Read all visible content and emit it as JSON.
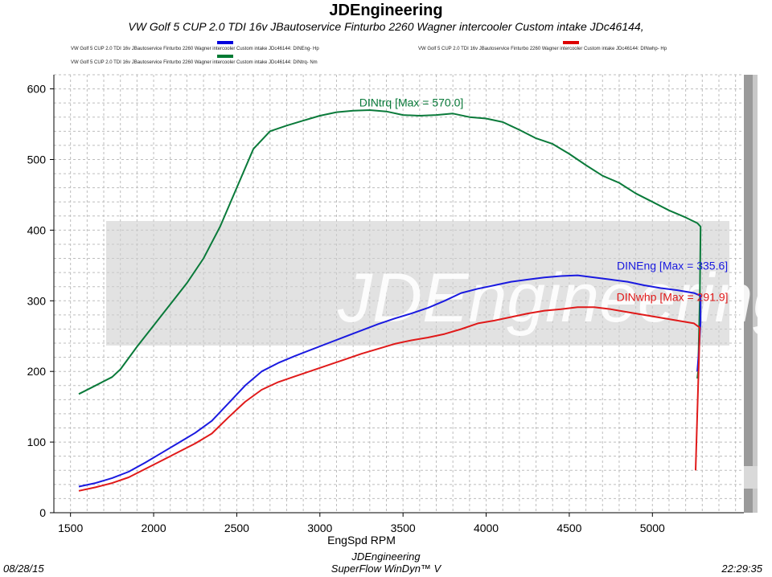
{
  "chart_data": {
    "type": "line",
    "title": "JDEngineering",
    "subtitle": "VW Golf 5  CUP   2.0 TDI 16v   JBautoservice Finturbo 2260  Wagner intercooler Custom intake    JDc46144,",
    "xlabel": "EngSpd  RPM",
    "ylabel": "",
    "xlim": [
      1400,
      5550
    ],
    "ylim": [
      0,
      620
    ],
    "xticks": [
      1500,
      2000,
      2500,
      3000,
      3500,
      4000,
      4500,
      5000
    ],
    "yticks": [
      0,
      100,
      200,
      300,
      400,
      500,
      600
    ],
    "legend": [
      {
        "text": "VW Golf 5  CUP   2.0 TDI 16v   JBautoservice Finturbo 2260  Wagner intercooler Custom intake    JDc46144: DINEng- Hp",
        "color": "#0000dd"
      },
      {
        "text": "VW Golf 5  CUP   2.0 TDI 16v   JBautoservice Finturbo 2260  Wagner intercooler Custom intake    JDc46144: DINwhp- Hp",
        "color": "#dd0000"
      },
      {
        "text": "VW Golf 5  CUP   2.0 TDI 16v   JBautoservice Finturbo 2260  Wagner intercooler Custom intake    JDc46144: DINtrq- Nm",
        "color": "#007a33"
      }
    ],
    "watermark": "JDEngineering",
    "series": [
      {
        "name": "DINtrq",
        "color": "#0a7a3a",
        "label": "DINtrq [Max = 570.0]",
        "label_at": [
          3550,
          575
        ],
        "x": [
          1550,
          1650,
          1750,
          1800,
          1900,
          2000,
          2100,
          2200,
          2300,
          2400,
          2500,
          2600,
          2700,
          2800,
          2900,
          3000,
          3100,
          3200,
          3300,
          3400,
          3500,
          3600,
          3700,
          3800,
          3900,
          4000,
          4100,
          4200,
          4300,
          4400,
          4500,
          4600,
          4700,
          4800,
          4900,
          5000,
          5100,
          5200,
          5270,
          5290,
          5285,
          5275,
          5270
        ],
        "values": [
          168,
          180,
          192,
          203,
          235,
          265,
          295,
          325,
          360,
          405,
          460,
          515,
          540,
          548,
          555,
          562,
          567,
          569,
          570,
          568,
          563,
          562,
          563,
          565,
          560,
          558,
          553,
          542,
          530,
          522,
          508,
          492,
          477,
          467,
          452,
          440,
          428,
          418,
          410,
          405,
          300,
          200,
          190
        ]
      },
      {
        "name": "DINEng",
        "color": "#1a1ae0",
        "label": "DINEng [Max = 335.6]",
        "label_at": [
          5120,
          344
        ],
        "x": [
          1550,
          1650,
          1750,
          1850,
          1950,
          2050,
          2150,
          2250,
          2350,
          2450,
          2550,
          2650,
          2750,
          2850,
          2950,
          3050,
          3150,
          3250,
          3350,
          3450,
          3550,
          3650,
          3750,
          3850,
          3950,
          4050,
          4150,
          4250,
          4350,
          4450,
          4550,
          4650,
          4750,
          4850,
          4950,
          5050,
          5150,
          5250,
          5290,
          5290,
          5280,
          5270
        ],
        "values": [
          37,
          42,
          49,
          58,
          71,
          85,
          99,
          113,
          130,
          155,
          180,
          200,
          212,
          222,
          231,
          240,
          249,
          258,
          267,
          275,
          282,
          290,
          300,
          311,
          317,
          322,
          327,
          330,
          333,
          335,
          336,
          333,
          330,
          327,
          322,
          318,
          315,
          311,
          307,
          270,
          230,
          200
        ]
      },
      {
        "name": "DINwhp",
        "color": "#e01a1a",
        "label": "DINwhp [Max = 291.9]",
        "label_at": [
          5120,
          300
        ],
        "x": [
          1550,
          1650,
          1750,
          1850,
          1950,
          2050,
          2150,
          2250,
          2350,
          2450,
          2550,
          2650,
          2750,
          2850,
          2950,
          3050,
          3150,
          3250,
          3350,
          3450,
          3550,
          3650,
          3750,
          3850,
          3950,
          4050,
          4150,
          4250,
          4350,
          4450,
          4550,
          4650,
          4750,
          4850,
          4950,
          5050,
          5150,
          5250,
          5285,
          5280,
          5270,
          5260
        ],
        "values": [
          31,
          36,
          42,
          50,
          62,
          74,
          86,
          98,
          112,
          135,
          157,
          174,
          185,
          193,
          201,
          209,
          217,
          225,
          232,
          239,
          244,
          248,
          253,
          260,
          268,
          272,
          277,
          282,
          286,
          288,
          291,
          291,
          288,
          284,
          280,
          276,
          272,
          268,
          262,
          220,
          140,
          60
        ]
      }
    ]
  },
  "footer": {
    "date": "08/28/15",
    "center_line1": "JDEngineering",
    "center_line2": "SuperFlow WinDyn™ V",
    "time": "22:29:35"
  }
}
